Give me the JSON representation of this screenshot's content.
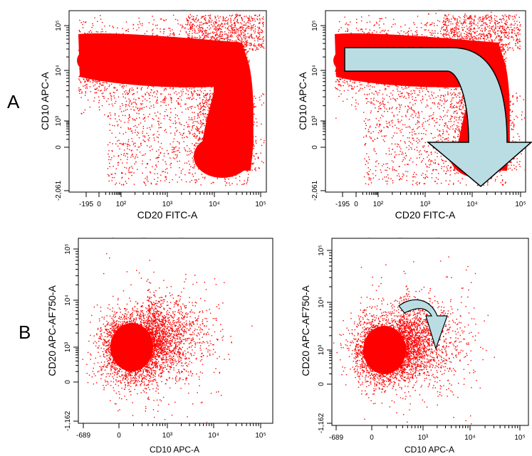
{
  "panel_labels": [
    "A",
    "B"
  ],
  "colors": {
    "events": "#ff0000",
    "arrow_fill": "#b9dde3",
    "arrow_stroke": "#000000"
  },
  "chart_data": [
    {
      "type": "scatter",
      "id": "A-left",
      "title": "",
      "xlabel": "CD20 FITC-A",
      "ylabel": "CD10 APC-A",
      "x_scale": "biexponential",
      "y_scale": "biexponential",
      "x_ticks": [
        "-195",
        "0",
        "10²",
        "10³",
        "10⁴",
        "10⁵"
      ],
      "y_ticks": [
        "-2,061",
        "0",
        "10³",
        "10⁴",
        "10⁵"
      ],
      "xlim": [
        -195,
        262144
      ],
      "ylim": [
        -2061,
        262144
      ],
      "populations": [
        {
          "shape": "horizontal band",
          "x_range": [
            40,
            15000
          ],
          "y_center": 10000
        },
        {
          "shape": "vertical band",
          "x_center": 8000,
          "y_range": [
            300,
            10000
          ]
        },
        {
          "shape": "dense cluster",
          "x_center": 13000,
          "y_center": 0
        }
      ]
    },
    {
      "type": "scatter",
      "id": "A-right",
      "title": "",
      "xlabel": "CD20 FITC-A",
      "ylabel": "CD10 APC-A",
      "x_scale": "biexponential",
      "y_scale": "biexponential",
      "x_ticks": [
        "-195",
        "0",
        "10²",
        "10³",
        "10⁴",
        "10⁵"
      ],
      "y_ticks": [
        "-2,061",
        "0",
        "10³",
        "10⁴",
        "10⁵"
      ],
      "xlim": [
        -195,
        262144
      ],
      "ylim": [
        -2061,
        262144
      ],
      "annotations": [
        "curved arrow from upper-left band toward lower-right cluster"
      ]
    },
    {
      "type": "scatter",
      "id": "B-left",
      "title": "",
      "xlabel": "CD10 APC-A",
      "ylabel": "CD20 APC-AF750-A",
      "x_scale": "biexponential",
      "y_scale": "biexponential",
      "x_ticks": [
        "-689",
        "0",
        "10³",
        "10⁴",
        "10⁵"
      ],
      "y_ticks": [
        "-1,162",
        "0",
        "10³",
        "10⁴",
        "10⁵"
      ],
      "xlim": [
        -689,
        262144
      ],
      "ylim": [
        -1162,
        262144
      ],
      "populations": [
        {
          "shape": "dense cluster",
          "x_center": 300,
          "y_center": 1000
        }
      ]
    },
    {
      "type": "scatter",
      "id": "B-right",
      "title": "",
      "xlabel": "CD10 APC-A",
      "ylabel": "CD20 APC-AF750-A",
      "x_scale": "biexponential",
      "y_scale": "biexponential",
      "x_ticks": [
        "-689",
        "0",
        "10³",
        "10⁴",
        "10⁵"
      ],
      "y_ticks": [
        "-1,162",
        "0",
        "10³",
        "10⁴",
        "10⁵"
      ],
      "xlim": [
        -689,
        262144
      ],
      "ylim": [
        -1162,
        262144
      ],
      "populations": [
        {
          "shape": "dense cluster",
          "x_center": 300,
          "y_center": 1000
        }
      ],
      "annotations": [
        "small curved arrow pointing right then down"
      ]
    }
  ]
}
